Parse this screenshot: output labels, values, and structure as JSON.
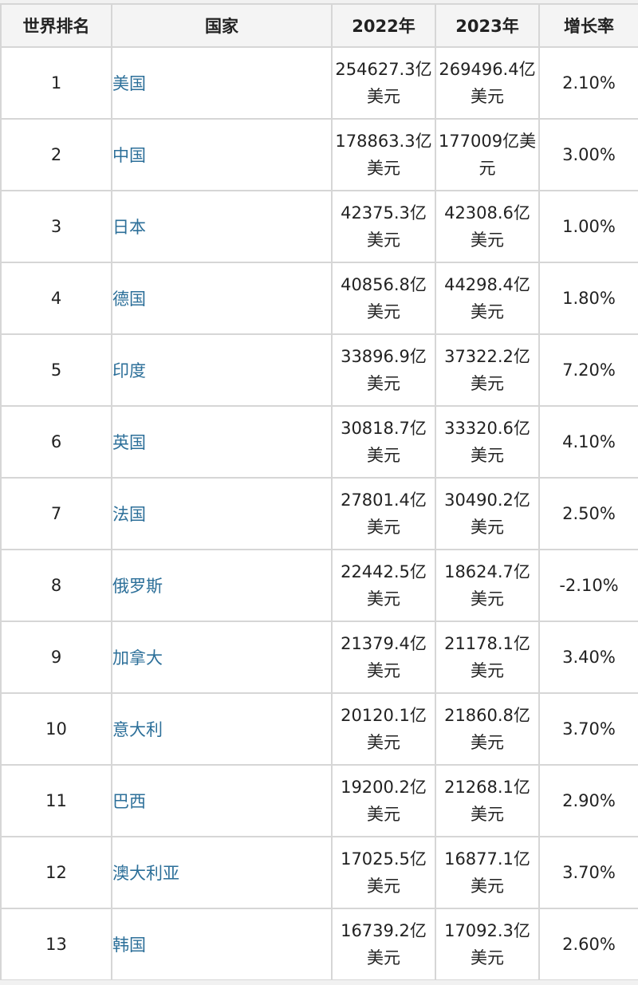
{
  "headers": {
    "rank": "世界排名",
    "country": "国家",
    "y2022": "2022年",
    "y2023": "2023年",
    "growth": "增长率"
  },
  "rows": [
    {
      "rank": "1",
      "country": "美国",
      "y2022": "254627.3亿美元",
      "y2023": "269496.4亿美元",
      "growth": "2.10%"
    },
    {
      "rank": "2",
      "country": "中国",
      "y2022": "178863.3亿美元",
      "y2023": "177009亿美元",
      "growth": "3.00%"
    },
    {
      "rank": "3",
      "country": "日本",
      "y2022": "42375.3亿美元",
      "y2023": "42308.6亿美元",
      "growth": "1.00%"
    },
    {
      "rank": "4",
      "country": "德国",
      "y2022": "40856.8亿美元",
      "y2023": "44298.4亿美元",
      "growth": "1.80%"
    },
    {
      "rank": "5",
      "country": "印度",
      "y2022": "33896.9亿美元",
      "y2023": "37322.2亿美元",
      "growth": "7.20%"
    },
    {
      "rank": "6",
      "country": "英国",
      "y2022": "30818.7亿美元",
      "y2023": "33320.6亿美元",
      "growth": "4.10%"
    },
    {
      "rank": "7",
      "country": "法国",
      "y2022": "27801.4亿美元",
      "y2023": "30490.2亿美元",
      "growth": "2.50%"
    },
    {
      "rank": "8",
      "country": "俄罗斯",
      "y2022": "22442.5亿美元",
      "y2023": "18624.7亿美元",
      "growth": "-2.10%"
    },
    {
      "rank": "9",
      "country": "加拿大",
      "y2022": "21379.4亿美元",
      "y2023": "21178.1亿美元",
      "growth": "3.40%"
    },
    {
      "rank": "10",
      "country": "意大利",
      "y2022": "20120.1亿美元",
      "y2023": "21860.8亿美元",
      "growth": "3.70%"
    },
    {
      "rank": "11",
      "country": "巴西",
      "y2022": "19200.2亿美元",
      "y2023": "21268.1亿美元",
      "growth": "2.90%"
    },
    {
      "rank": "12",
      "country": "澳大利亚",
      "y2022": "17025.5亿美元",
      "y2023": "16877.1亿美元",
      "growth": "3.70%"
    },
    {
      "rank": "13",
      "country": "韩国",
      "y2022": "16739.2亿美元",
      "y2023": "17092.3亿美元",
      "growth": "2.60%"
    }
  ]
}
